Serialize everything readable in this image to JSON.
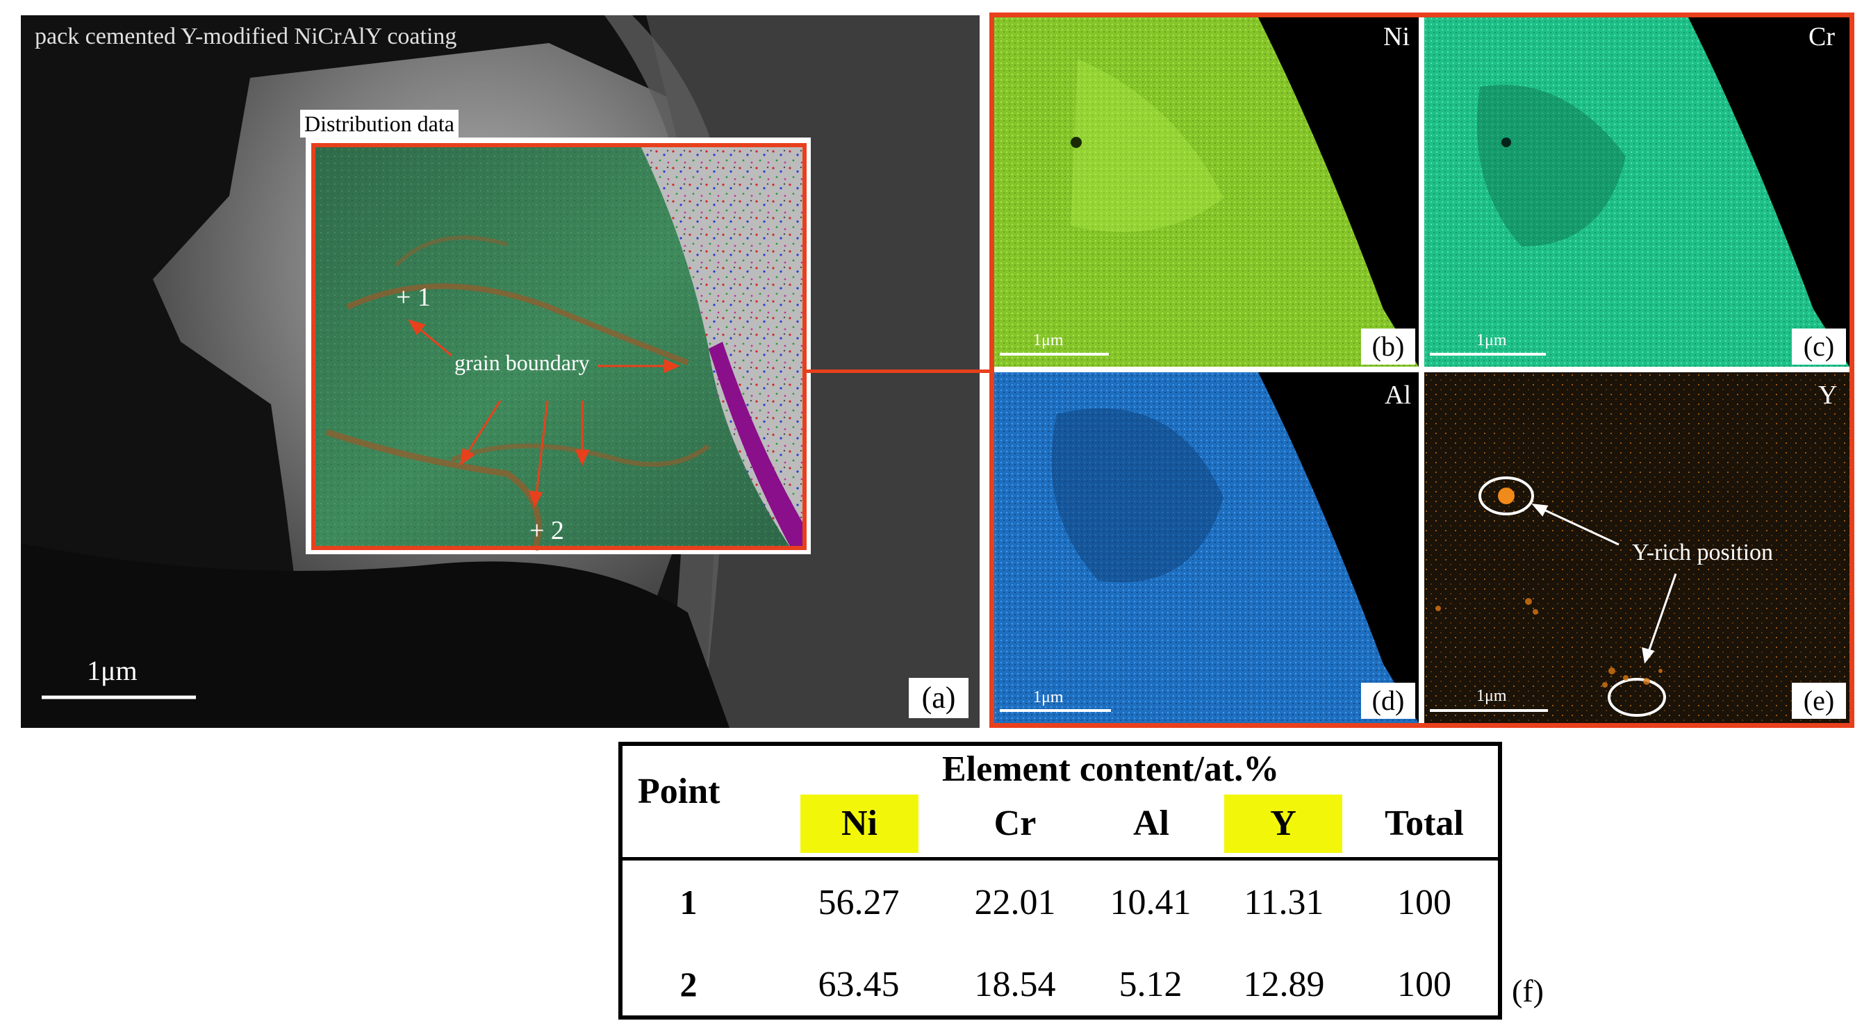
{
  "panel_a": {
    "title": "pack cemented Y-modified NiCrAlY coating",
    "inset_label": "Distribution data",
    "point1": "+ 1",
    "point2": "+ 2",
    "annotation": "grain boundary",
    "scale": "1μm",
    "label": "(a)"
  },
  "maps": [
    {
      "element": "Ni",
      "scale": "1μm",
      "label": "(b)",
      "color": "#9fe23a"
    },
    {
      "element": "Cr",
      "scale": "1μm",
      "label": "(c)",
      "color": "#2fe0a4"
    },
    {
      "element": "Al",
      "scale": "1μm",
      "label": "(d)",
      "color": "#2a8fe8"
    },
    {
      "element": "Y",
      "scale": "1μm",
      "label": "(e)",
      "color": "#f08a1a"
    }
  ],
  "y_annotation": "Y-rich position",
  "table": {
    "header_point": "Point",
    "header_group": "Element content/at.%",
    "columns": [
      "Ni",
      "Cr",
      "Al",
      "Y",
      "Total"
    ],
    "highlight_color": "#f2f70a",
    "rows": [
      {
        "point": "1",
        "values": [
          "56.27",
          "22.01",
          "10.41",
          "11.31",
          "100"
        ]
      },
      {
        "point": "2",
        "values": [
          "63.45",
          "18.54",
          "5.12",
          "12.89",
          "100"
        ]
      }
    ],
    "label": "(f)"
  },
  "accent_color": "#e8401c"
}
